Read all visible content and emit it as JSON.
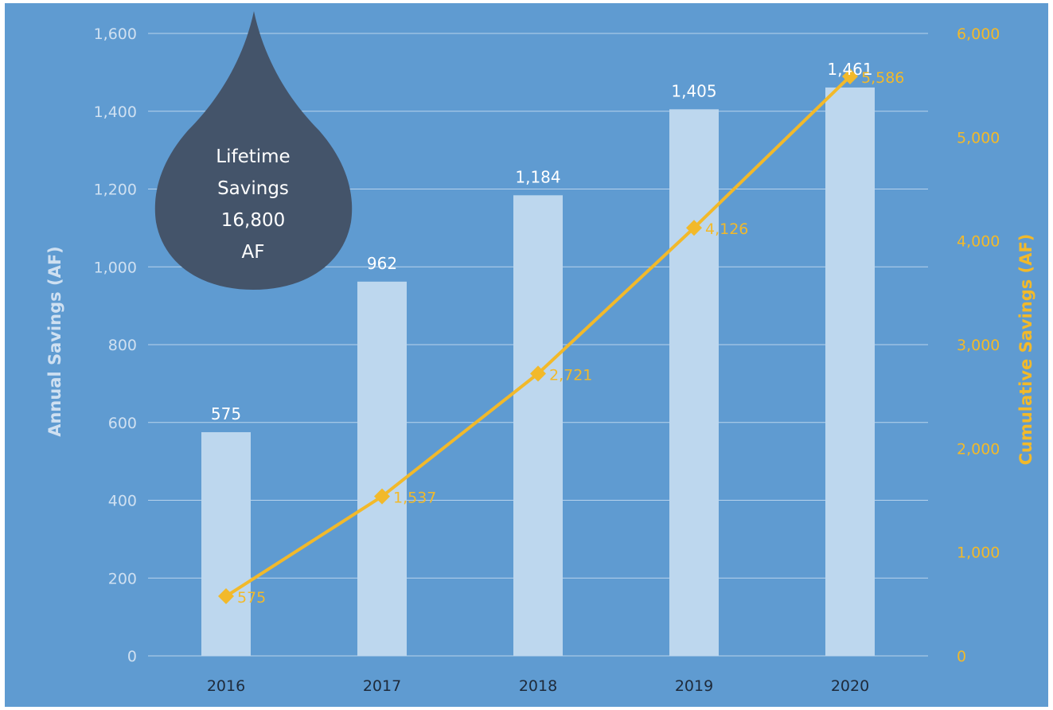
{
  "chart_data": {
    "type": "bar",
    "categories": [
      "2016",
      "2017",
      "2018",
      "2019",
      "2020"
    ],
    "series": [
      {
        "name": "Annual Savings",
        "type": "bar",
        "axis": "left",
        "values": [
          575,
          962,
          1184,
          1405,
          1461
        ],
        "labels": [
          "575",
          "962",
          "1,184",
          "1,405",
          "1,461"
        ]
      },
      {
        "name": "Cumulative Savings",
        "type": "line",
        "axis": "right",
        "values": [
          575,
          1537,
          2721,
          4126,
          5586
        ],
        "labels": [
          "575",
          "1,537",
          "2,721",
          "4,126",
          "5,586"
        ]
      }
    ],
    "ylabel": "Annual Savings (AF)",
    "y2label": "Cumulative Savings (AF)",
    "ylim": [
      0,
      1600
    ],
    "y2lim": [
      0,
      6000
    ],
    "yticks": [
      "0",
      "200",
      "400",
      "600",
      "800",
      "1,000",
      "1,200",
      "1,400",
      "1,600"
    ],
    "y2ticks": [
      "0",
      "1,000",
      "2,000",
      "3,000",
      "4,000",
      "5,000",
      "6,000"
    ],
    "grid": true,
    "annotation": {
      "lines": [
        "Lifetime",
        "Savings",
        "16,800",
        "AF"
      ]
    },
    "colors": {
      "background": "#5f9bd1",
      "bar": "#bdd7ee",
      "line": "#f2b92a",
      "drop": "#44546a"
    }
  }
}
